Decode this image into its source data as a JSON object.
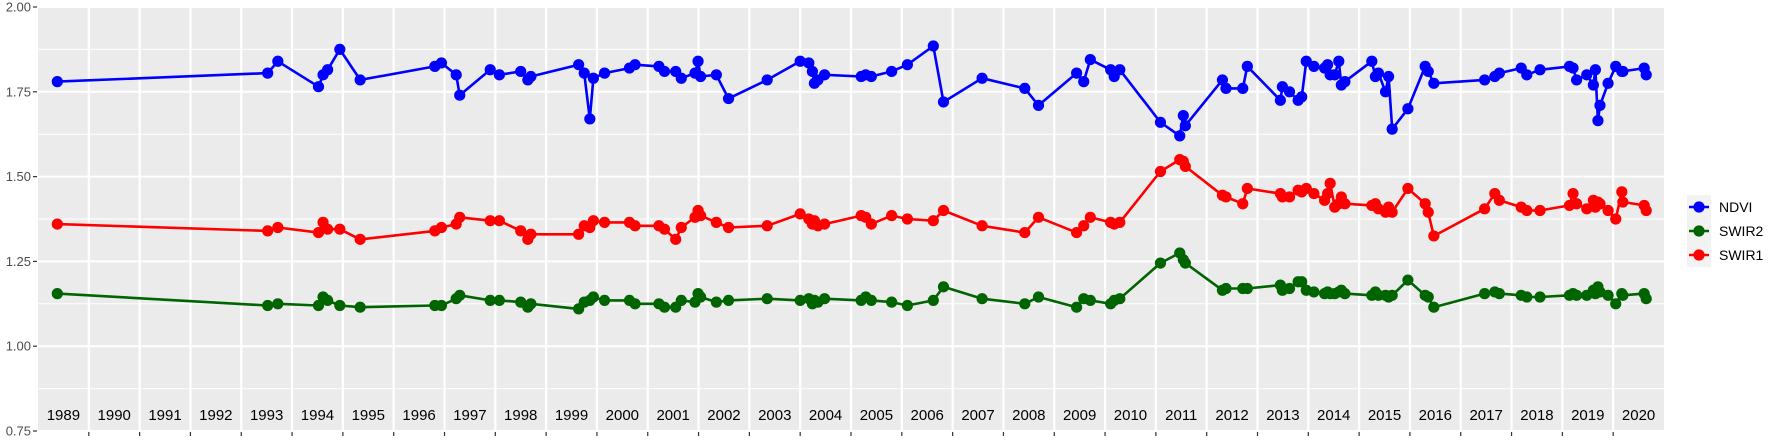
{
  "chart_data": {
    "type": "line",
    "title": "",
    "xlabel": "",
    "ylabel": "",
    "xlim": [
      1989,
      2021
    ],
    "ylim": [
      0.75,
      2.0
    ],
    "yticks": [
      "0.75",
      "1.00",
      "1.25",
      "1.50",
      "1.75",
      "2.00"
    ],
    "year_labels": [
      "1989",
      "1990",
      "1991",
      "1992",
      "1993",
      "1994",
      "1995",
      "1996",
      "1997",
      "1998",
      "1999",
      "2000",
      "2001",
      "2002",
      "2003",
      "2004",
      "2005",
      "2006",
      "2007",
      "2008",
      "2009",
      "2010",
      "2011",
      "2012",
      "2013",
      "2014",
      "2015",
      "2016",
      "2017",
      "2018",
      "2019",
      "2020"
    ],
    "grid": true,
    "legend_position": "right",
    "x": [
      1989.38,
      1993.52,
      1993.72,
      1994.52,
      1994.61,
      1994.7,
      1994.94,
      1995.34,
      1996.81,
      1996.94,
      1997.23,
      1997.3,
      1997.9,
      1998.08,
      1998.5,
      1998.64,
      1998.7,
      1999.64,
      1999.75,
      1999.86,
      1999.93,
      2000.15,
      2000.64,
      2000.75,
      2001.22,
      2001.33,
      2001.55,
      2001.66,
      2001.93,
      2001.99,
      2002.04,
      2002.35,
      2002.59,
      2003.35,
      2004.0,
      2004.17,
      2004.24,
      2004.28,
      2004.35,
      2004.48,
      2005.2,
      2005.29,
      2005.4,
      2005.8,
      2006.11,
      2006.62,
      2006.82,
      2007.58,
      2008.42,
      2008.69,
      2009.44,
      2009.58,
      2009.71,
      2010.11,
      2010.18,
      2010.29,
      2011.09,
      2011.47,
      2011.54,
      2011.58,
      2012.31,
      2012.38,
      2012.71,
      2012.8,
      2013.45,
      2013.49,
      2013.63,
      2013.8,
      2013.87,
      2013.96,
      2014.11,
      2014.32,
      2014.38,
      2014.43,
      2014.52,
      2014.6,
      2014.65,
      2014.72,
      2015.25,
      2015.32,
      2015.38,
      2015.52,
      2015.58,
      2015.65,
      2015.96,
      2016.3,
      2016.36,
      2016.47,
      2017.47,
      2017.67,
      2017.76,
      2018.19,
      2018.3,
      2018.56,
      2019.14,
      2019.21,
      2019.28,
      2019.48,
      2019.61,
      2019.65,
      2019.7,
      2019.74,
      2019.9,
      2020.05,
      2020.17,
      2020.19,
      2020.61,
      2020.65
    ],
    "series": [
      {
        "name": "NDVI",
        "color": "#0000FF",
        "values": [
          1.78,
          1.805,
          1.84,
          1.765,
          1.8,
          1.815,
          1.875,
          1.785,
          1.825,
          1.835,
          1.8,
          1.74,
          1.815,
          1.8,
          1.81,
          1.785,
          1.795,
          1.83,
          1.805,
          1.67,
          1.79,
          1.805,
          1.82,
          1.83,
          1.825,
          1.81,
          1.81,
          1.79,
          1.805,
          1.84,
          1.795,
          1.8,
          1.73,
          1.785,
          1.84,
          1.835,
          1.81,
          1.775,
          1.785,
          1.8,
          1.795,
          1.8,
          1.795,
          1.81,
          1.83,
          1.885,
          1.72,
          1.79,
          1.76,
          1.71,
          1.805,
          1.78,
          1.845,
          1.815,
          1.795,
          1.815,
          1.66,
          1.62,
          1.68,
          1.65,
          1.785,
          1.76,
          1.76,
          1.825,
          1.725,
          1.765,
          1.75,
          1.725,
          1.735,
          1.84,
          1.825,
          1.82,
          1.83,
          1.8,
          1.8,
          1.84,
          1.77,
          1.78,
          1.84,
          1.795,
          1.805,
          1.75,
          1.795,
          1.64,
          1.7,
          1.825,
          1.81,
          1.775,
          1.785,
          1.795,
          1.805,
          1.82,
          1.8,
          1.815,
          1.825,
          1.82,
          1.785,
          1.8,
          1.77,
          1.815,
          1.665,
          1.71,
          1.775,
          1.825,
          1.81,
          1.81,
          1.82,
          1.8
        ]
      },
      {
        "name": "SWIR2",
        "color": "#006400",
        "values": [
          1.155,
          1.12,
          1.125,
          1.12,
          1.145,
          1.135,
          1.12,
          1.115,
          1.12,
          1.12,
          1.14,
          1.15,
          1.135,
          1.135,
          1.13,
          1.115,
          1.125,
          1.11,
          1.13,
          1.135,
          1.145,
          1.135,
          1.135,
          1.125,
          1.125,
          1.115,
          1.115,
          1.135,
          1.13,
          1.155,
          1.145,
          1.13,
          1.135,
          1.14,
          1.135,
          1.14,
          1.125,
          1.135,
          1.13,
          1.14,
          1.135,
          1.145,
          1.135,
          1.13,
          1.12,
          1.135,
          1.175,
          1.14,
          1.125,
          1.145,
          1.115,
          1.14,
          1.135,
          1.125,
          1.135,
          1.14,
          1.245,
          1.275,
          1.255,
          1.245,
          1.165,
          1.17,
          1.17,
          1.17,
          1.18,
          1.165,
          1.17,
          1.19,
          1.19,
          1.165,
          1.16,
          1.155,
          1.16,
          1.155,
          1.155,
          1.16,
          1.165,
          1.155,
          1.15,
          1.16,
          1.15,
          1.15,
          1.145,
          1.15,
          1.195,
          1.15,
          1.145,
          1.115,
          1.155,
          1.16,
          1.155,
          1.15,
          1.145,
          1.145,
          1.15,
          1.155,
          1.15,
          1.15,
          1.165,
          1.155,
          1.175,
          1.16,
          1.15,
          1.125,
          1.155,
          1.15,
          1.155,
          1.14
        ]
      },
      {
        "name": "SWIR1",
        "color": "#FF0000",
        "values": [
          1.36,
          1.34,
          1.35,
          1.335,
          1.365,
          1.345,
          1.345,
          1.315,
          1.34,
          1.35,
          1.36,
          1.38,
          1.37,
          1.37,
          1.34,
          1.315,
          1.33,
          1.33,
          1.355,
          1.35,
          1.37,
          1.365,
          1.365,
          1.355,
          1.355,
          1.345,
          1.315,
          1.35,
          1.38,
          1.4,
          1.385,
          1.365,
          1.35,
          1.355,
          1.39,
          1.375,
          1.36,
          1.37,
          1.355,
          1.36,
          1.385,
          1.38,
          1.36,
          1.385,
          1.375,
          1.37,
          1.4,
          1.355,
          1.335,
          1.38,
          1.335,
          1.355,
          1.38,
          1.365,
          1.36,
          1.365,
          1.515,
          1.55,
          1.545,
          1.53,
          1.445,
          1.44,
          1.42,
          1.465,
          1.45,
          1.44,
          1.44,
          1.46,
          1.455,
          1.465,
          1.45,
          1.43,
          1.45,
          1.48,
          1.41,
          1.42,
          1.44,
          1.42,
          1.415,
          1.42,
          1.405,
          1.395,
          1.41,
          1.395,
          1.465,
          1.42,
          1.395,
          1.325,
          1.405,
          1.45,
          1.43,
          1.41,
          1.4,
          1.4,
          1.415,
          1.45,
          1.42,
          1.405,
          1.43,
          1.41,
          1.425,
          1.42,
          1.4,
          1.375,
          1.455,
          1.425,
          1.415,
          1.4
        ]
      }
    ],
    "legend": [
      "NDVI",
      "SWIR2",
      "SWIR1"
    ]
  }
}
